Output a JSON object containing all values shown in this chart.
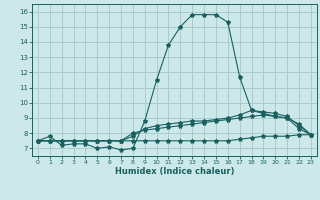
{
  "xlabel": "Humidex (Indice chaleur)",
  "bg_color": "#cce8e8",
  "line_color": "#1a6060",
  "grid_color": "#aacccc",
  "xlim": [
    -0.5,
    23.5
  ],
  "ylim": [
    6.5,
    16.5
  ],
  "yticks": [
    7,
    8,
    9,
    10,
    11,
    12,
    13,
    14,
    15,
    16
  ],
  "xticks": [
    0,
    1,
    2,
    3,
    4,
    5,
    6,
    7,
    8,
    9,
    10,
    11,
    12,
    13,
    14,
    15,
    16,
    17,
    18,
    19,
    20,
    21,
    22,
    23
  ],
  "series": [
    {
      "x": [
        0,
        1,
        2,
        3,
        4,
        5,
        6,
        7,
        8,
        9,
        10,
        11,
        12,
        13,
        14,
        15,
        16,
        17,
        18,
        19,
        20,
        21,
        22,
        23
      ],
      "y": [
        7.5,
        7.8,
        7.2,
        7.3,
        7.3,
        7.0,
        7.1,
        6.9,
        7.0,
        8.8,
        11.5,
        13.8,
        15.0,
        15.8,
        15.8,
        15.8,
        15.3,
        11.7,
        9.5,
        9.3,
        9.1,
        9.0,
        8.3,
        7.9
      ]
    },
    {
      "x": [
        0,
        1,
        2,
        3,
        4,
        5,
        6,
        7,
        8,
        9,
        10,
        11,
        12,
        13,
        14,
        15,
        16,
        17,
        18,
        19,
        20,
        21,
        22,
        23
      ],
      "y": [
        7.5,
        7.5,
        7.5,
        7.5,
        7.5,
        7.5,
        7.5,
        7.5,
        7.8,
        8.3,
        8.5,
        8.6,
        8.7,
        8.8,
        8.8,
        8.9,
        9.0,
        9.2,
        9.5,
        9.4,
        9.3,
        9.1,
        8.5,
        7.9
      ]
    },
    {
      "x": [
        0,
        1,
        2,
        3,
        4,
        5,
        6,
        7,
        8,
        9,
        10,
        11,
        12,
        13,
        14,
        15,
        16,
        17,
        18,
        19,
        20,
        21,
        22,
        23
      ],
      "y": [
        7.5,
        7.5,
        7.5,
        7.5,
        7.5,
        7.5,
        7.5,
        7.5,
        8.0,
        8.2,
        8.3,
        8.4,
        8.5,
        8.6,
        8.7,
        8.8,
        8.9,
        9.0,
        9.1,
        9.2,
        9.1,
        9.0,
        8.6,
        7.9
      ]
    },
    {
      "x": [
        0,
        1,
        2,
        3,
        4,
        5,
        6,
        7,
        8,
        9,
        10,
        11,
        12,
        13,
        14,
        15,
        16,
        17,
        18,
        19,
        20,
        21,
        22,
        23
      ],
      "y": [
        7.5,
        7.5,
        7.5,
        7.5,
        7.5,
        7.5,
        7.5,
        7.5,
        7.5,
        7.5,
        7.5,
        7.5,
        7.5,
        7.5,
        7.5,
        7.5,
        7.5,
        7.6,
        7.7,
        7.8,
        7.8,
        7.8,
        7.9,
        7.9
      ]
    }
  ]
}
